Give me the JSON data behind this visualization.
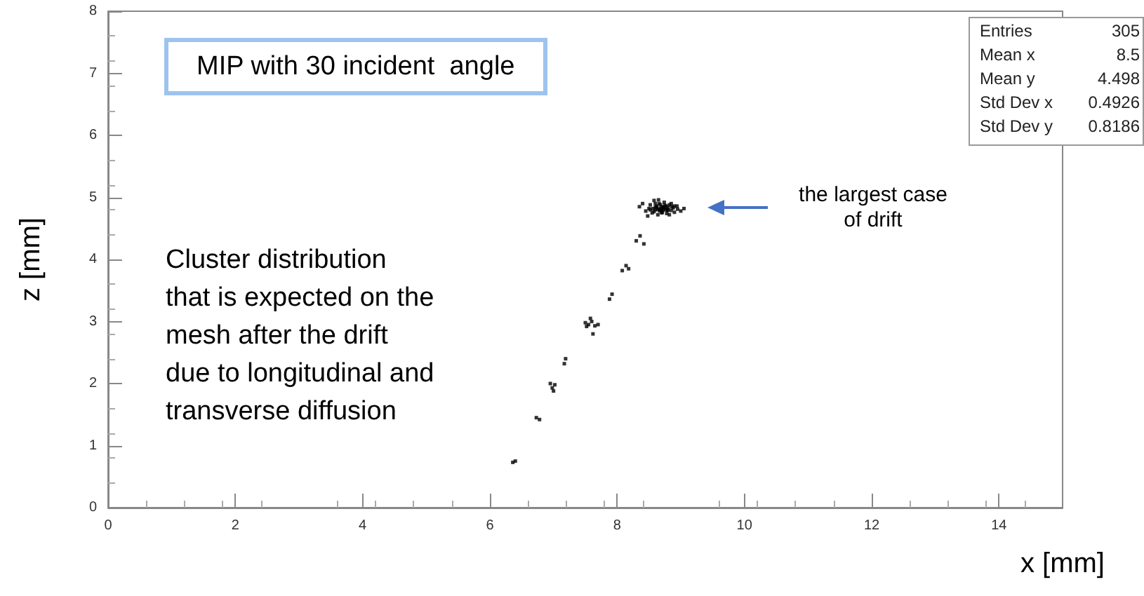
{
  "chart_data": {
    "type": "scatter",
    "title": "MIP with 30 incident  angle",
    "xlabel": "x [mm]",
    "ylabel": "z [mm]",
    "annotations": [
      "Cluster distribution\nthat is expected on the\nmesh after the drift\ndue to longitudinal and\ntransverse diffusion",
      "the largest case\nof drift",
      "Entries 305",
      "Mean x 8.5",
      "Mean y 4.498",
      "Std Dev x 0.4926",
      "Std Dev y 0.8186"
    ],
    "x": [
      6.36,
      6.4,
      6.73,
      6.78,
      6.98,
      7.02,
      7.0,
      6.95,
      7.17,
      7.19,
      7.5,
      7.55,
      7.6,
      7.65,
      7.52,
      7.58,
      7.7,
      7.62,
      7.88,
      7.92,
      8.08,
      8.14,
      8.18,
      8.3,
      8.36,
      8.42,
      8.35,
      8.4,
      8.45,
      8.5,
      8.52,
      8.55,
      8.58,
      8.6,
      8.62,
      8.64,
      8.66,
      8.68,
      8.7,
      8.72,
      8.74,
      8.76,
      8.78,
      8.8,
      8.82,
      8.85,
      8.88,
      8.9,
      8.95,
      9.0,
      9.05,
      8.48,
      8.56,
      8.6,
      8.65,
      8.7,
      8.75,
      8.8,
      8.85,
      8.62,
      8.67,
      8.72,
      8.77,
      8.58,
      8.68,
      8.73,
      8.82,
      8.9,
      8.52,
      8.64,
      8.7,
      8.79,
      8.86,
      8.6,
      8.66,
      8.71,
      8.76,
      8.94
    ],
    "values": [
      0.73,
      0.75,
      1.45,
      1.42,
      1.93,
      1.98,
      1.88,
      2.0,
      2.32,
      2.4,
      2.98,
      2.95,
      3.0,
      2.93,
      2.92,
      3.05,
      2.95,
      2.8,
      3.36,
      3.44,
      3.82,
      3.9,
      3.85,
      4.3,
      4.38,
      4.25,
      4.85,
      4.9,
      4.78,
      4.82,
      4.88,
      4.75,
      4.95,
      4.8,
      4.86,
      4.72,
      4.9,
      4.82,
      4.78,
      4.85,
      4.92,
      4.8,
      4.74,
      4.84,
      4.88,
      4.79,
      4.83,
      4.76,
      4.81,
      4.78,
      4.82,
      4.7,
      4.82,
      4.9,
      4.96,
      4.75,
      4.87,
      4.8,
      4.9,
      4.84,
      4.78,
      4.8,
      4.86,
      4.77,
      4.88,
      4.83,
      4.72,
      4.86,
      4.8,
      4.81,
      4.84,
      4.79,
      4.85,
      4.84,
      4.8,
      4.76,
      4.83,
      4.86
    ],
    "color": "#000000",
    "marker": "square",
    "xlim": [
      0,
      15
    ],
    "ylim": [
      0,
      8
    ],
    "xticks": [
      0,
      2,
      4,
      6,
      8,
      10,
      12,
      14
    ],
    "yticks": [
      0,
      1,
      2,
      3,
      4,
      5,
      6,
      7,
      8
    ],
    "grid": false
  }
}
